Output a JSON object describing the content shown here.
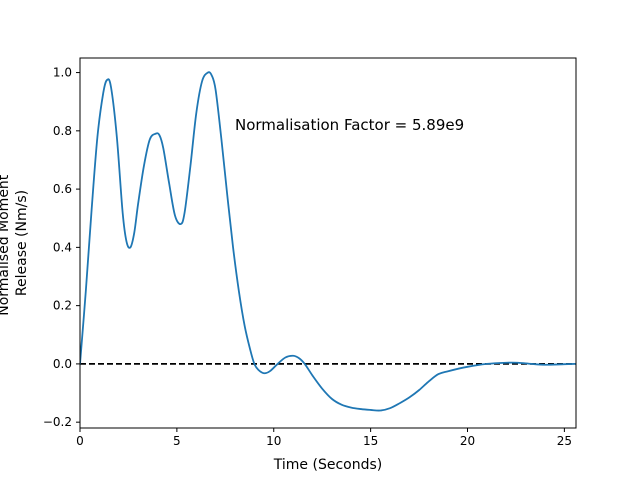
{
  "chart_data": {
    "type": "line",
    "title": "",
    "xlabel": "Time (Seconds)",
    "ylabel_lines": [
      "Normalised Moment",
      "Release (Nm/s)"
    ],
    "xlim": [
      0,
      25.6
    ],
    "ylim": [
      -0.22,
      1.05
    ],
    "xticks": [
      0,
      5,
      10,
      15,
      20,
      25
    ],
    "yticks": [
      -0.2,
      0.0,
      0.2,
      0.4,
      0.6,
      0.8,
      1.0
    ],
    "ytick_labels": [
      "−0.2",
      "0.0",
      "0.2",
      "0.4",
      "0.6",
      "0.8",
      "1.0"
    ],
    "grid": false,
    "reference_line": {
      "y": 0.0,
      "style": "dashed",
      "color": "#000000"
    },
    "annotation": {
      "text": "Normalisation Factor = 5.89e9",
      "x": 8.0,
      "y": 0.8
    },
    "series": [
      {
        "color": "#1f77b4",
        "x": [
          0,
          0.3,
          0.6,
          0.9,
          1.2,
          1.4,
          1.6,
          1.9,
          2.2,
          2.4,
          2.6,
          2.8,
          3.0,
          3.3,
          3.6,
          3.9,
          4.1,
          4.3,
          4.6,
          4.9,
          5.2,
          5.4,
          5.7,
          6.0,
          6.3,
          6.6,
          6.8,
          7.0,
          7.3,
          7.6,
          7.9,
          8.2,
          8.5,
          8.8,
          9.0,
          9.2,
          9.5,
          9.8,
          10.2,
          10.6,
          11.0,
          11.3,
          11.6,
          12.0,
          12.5,
          13.0,
          13.5,
          14.0,
          14.5,
          15.0,
          15.5,
          16.0,
          16.5,
          17.0,
          17.5,
          18.0,
          18.5,
          19.0,
          20.0,
          21.0,
          22.0,
          22.6,
          23.3,
          24.0,
          25.0,
          25.6
        ],
        "y": [
          0.0,
          0.25,
          0.53,
          0.78,
          0.93,
          0.975,
          0.95,
          0.78,
          0.52,
          0.42,
          0.4,
          0.45,
          0.55,
          0.68,
          0.77,
          0.79,
          0.785,
          0.74,
          0.62,
          0.51,
          0.48,
          0.52,
          0.68,
          0.86,
          0.97,
          1.0,
          0.99,
          0.94,
          0.77,
          0.58,
          0.4,
          0.25,
          0.13,
          0.045,
          0.0,
          -0.02,
          -0.032,
          -0.025,
          0.0,
          0.022,
          0.028,
          0.02,
          0.0,
          -0.04,
          -0.085,
          -0.12,
          -0.14,
          -0.15,
          -0.155,
          -0.158,
          -0.16,
          -0.152,
          -0.135,
          -0.115,
          -0.09,
          -0.06,
          -0.035,
          -0.025,
          -0.01,
          0.0,
          0.004,
          0.004,
          0.0,
          -0.003,
          -0.001,
          0.0
        ]
      }
    ]
  }
}
